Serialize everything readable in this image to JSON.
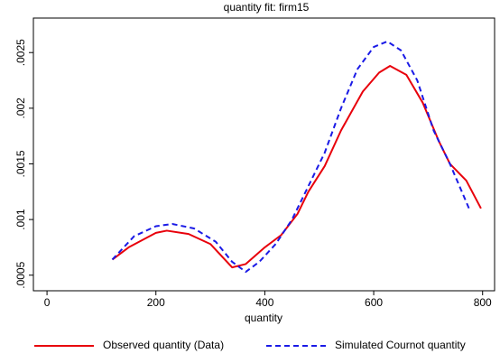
{
  "chart_data": {
    "type": "line",
    "title": "quantity fit: firm15",
    "x_label": "quantity",
    "xlim": [
      -25,
      822
    ],
    "ylim": [
      0.00036,
      0.00281
    ],
    "xticks": [
      0,
      200,
      400,
      600,
      800
    ],
    "yticks": [
      {
        "value": 0.0005,
        "label": ".0005"
      },
      {
        "value": 0.001,
        "label": ".001"
      },
      {
        "value": 0.0015,
        "label": ".0015"
      },
      {
        "value": 0.002,
        "label": ".002"
      },
      {
        "value": 0.0025,
        "label": ".0025"
      }
    ],
    "legend": "bottom",
    "series": [
      {
        "name": "Observed quantity (Data)",
        "color": "#e8000b",
        "dashed": false,
        "x": [
          120,
          150,
          200,
          220,
          260,
          300,
          340,
          365,
          400,
          430,
          460,
          480,
          510,
          540,
          580,
          610,
          630,
          660,
          690,
          720,
          740,
          770,
          797
        ],
        "values": [
          0.00064,
          0.00075,
          0.00088,
          0.0009,
          0.00087,
          0.00078,
          0.00057,
          0.0006,
          0.00075,
          0.00086,
          0.00105,
          0.00125,
          0.00148,
          0.0018,
          0.00215,
          0.00232,
          0.00238,
          0.0023,
          0.00205,
          0.0017,
          0.0015,
          0.00135,
          0.0011
        ]
      },
      {
        "name": "Simulated Cournot quantity",
        "color": "#1a1ae6",
        "dashed": true,
        "x": [
          120,
          160,
          200,
          230,
          270,
          310,
          340,
          365,
          390,
          420,
          450,
          480,
          510,
          540,
          570,
          600,
          625,
          650,
          680,
          710,
          740,
          775
        ],
        "values": [
          0.00064,
          0.00085,
          0.00094,
          0.00096,
          0.00092,
          0.0008,
          0.00062,
          0.00053,
          0.00062,
          0.00078,
          0.001,
          0.0013,
          0.0016,
          0.002,
          0.00235,
          0.00255,
          0.0026,
          0.00252,
          0.00225,
          0.0018,
          0.0015,
          0.0011
        ]
      }
    ]
  }
}
